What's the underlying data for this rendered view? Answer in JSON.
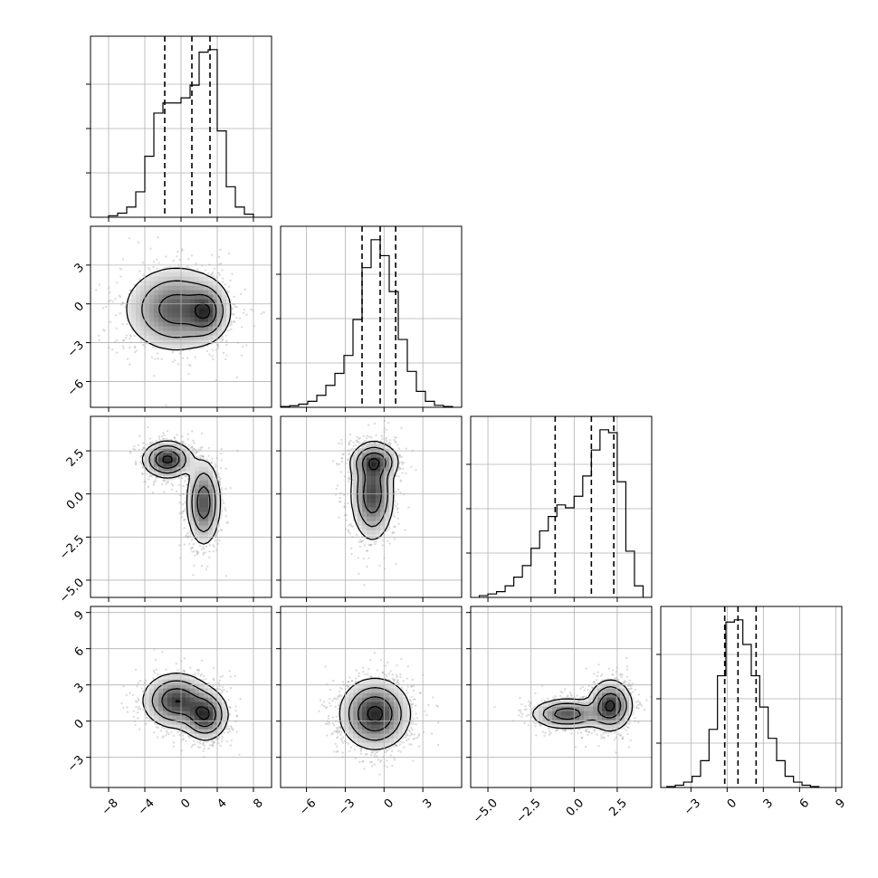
{
  "chart_data": {
    "type": "corner",
    "parameters": [
      {
        "range": [
          -10,
          10
        ],
        "ticks": [
          -8,
          -4,
          0,
          4,
          8
        ],
        "tick_labels": [
          "−8",
          "−4",
          "0",
          "4",
          "8"
        ],
        "hist_edges": [
          -8,
          -7,
          -6,
          -5,
          -4,
          -3,
          -2,
          -1,
          0,
          1,
          2,
          3,
          4,
          5,
          6,
          7,
          8
        ],
        "hist_counts": [
          3,
          8,
          20,
          50,
          120,
          205,
          225,
          225,
          235,
          260,
          325,
          330,
          170,
          60,
          20,
          6
        ],
        "quantiles": [
          -1.8,
          1.2,
          3.2
        ]
      },
      {
        "range": [
          -8,
          6
        ],
        "ticks": [
          -6,
          -3,
          0,
          3
        ],
        "tick_labels": [
          "−6",
          "−3",
          "0",
          "3"
        ],
        "hist_edges": [
          -8,
          -7.3,
          -6.6,
          -5.9,
          -5.2,
          -4.5,
          -3.8,
          -3.1,
          -2.4,
          -1.7,
          -1.0,
          -0.3,
          0.4,
          1.1,
          1.8,
          2.5,
          3.2,
          3.9,
          4.6,
          5.3
        ],
        "hist_counts": [
          2,
          4,
          8,
          15,
          30,
          55,
          85,
          130,
          220,
          350,
          420,
          380,
          290,
          170,
          90,
          40,
          15,
          5,
          2
        ],
        "quantiles": [
          -1.7,
          -0.3,
          0.9
        ]
      },
      {
        "range": [
          -6,
          4.5
        ],
        "ticks": [
          -5.0,
          -2.5,
          0.0,
          2.5
        ],
        "tick_labels": [
          "−5.0",
          "−2.5",
          "0.0",
          "2.5"
        ],
        "hist_edges": [
          -5.5,
          -5.0,
          -4.5,
          -4.0,
          -3.5,
          -3.0,
          -2.5,
          -2.0,
          -1.5,
          -1.0,
          -0.5,
          0.0,
          0.5,
          1.0,
          1.5,
          2.0,
          2.5,
          3.0,
          3.5,
          4.0
        ],
        "hist_counts": [
          3,
          6,
          10,
          20,
          35,
          55,
          85,
          115,
          140,
          160,
          155,
          175,
          210,
          255,
          290,
          285,
          200,
          80,
          20
        ],
        "quantiles": [
          -1.1,
          1.0,
          2.3
        ]
      },
      {
        "range": [
          -5.5,
          9.5
        ],
        "ticks": [
          -3,
          0,
          3,
          6,
          9
        ],
        "tick_labels": [
          "−3",
          "0",
          "3",
          "6",
          "9"
        ],
        "hist_edges": [
          -5,
          -4.3,
          -3.6,
          -2.9,
          -2.2,
          -1.5,
          -0.8,
          -0.1,
          0.6,
          1.3,
          2.0,
          2.7,
          3.4,
          4.1,
          4.8,
          5.5,
          6.2,
          6.9,
          7.6
        ],
        "hist_counts": [
          2,
          5,
          12,
          25,
          60,
          130,
          250,
          370,
          375,
          320,
          250,
          180,
          110,
          60,
          25,
          12,
          5,
          2
        ],
        "quantiles": [
          -0.2,
          0.9,
          2.4
        ]
      }
    ],
    "pairs": [
      {
        "x": 0,
        "y": 1,
        "modes": [
          {
            "mx": -0.5,
            "my": -0.4,
            "sx": 2.8,
            "sy": 1.6,
            "w": 0.55
          },
          {
            "mx": 2.8,
            "my": -0.6,
            "sx": 1.1,
            "sy": 1.0,
            "w": 0.45
          }
        ]
      },
      {
        "x": 0,
        "y": 2,
        "modes": [
          {
            "mx": -1.5,
            "my": 2.0,
            "sx": 1.3,
            "sy": 0.5,
            "w": 0.55
          },
          {
            "mx": 2.5,
            "my": -0.5,
            "sx": 0.9,
            "sy": 1.2,
            "w": 0.45
          }
        ]
      },
      {
        "x": 1,
        "y": 2,
        "modes": [
          {
            "mx": -0.7,
            "my": 1.9,
            "sx": 0.9,
            "sy": 0.5,
            "w": 0.45
          },
          {
            "mx": -0.9,
            "my": 0.0,
            "sx": 0.8,
            "sy": 1.3,
            "w": 0.55
          }
        ]
      },
      {
        "x": 0,
        "y": 3,
        "modes": [
          {
            "mx": -0.5,
            "my": 1.7,
            "sx": 1.8,
            "sy": 1.1,
            "w": 0.5
          },
          {
            "mx": 2.7,
            "my": 0.5,
            "sx": 1.2,
            "sy": 1.0,
            "w": 0.5
          }
        ]
      },
      {
        "x": 1,
        "y": 3,
        "modes": [
          {
            "mx": -0.7,
            "my": 0.6,
            "sx": 1.3,
            "sy": 1.4,
            "w": 1.0
          }
        ]
      },
      {
        "x": 2,
        "y": 3,
        "modes": [
          {
            "mx": -0.4,
            "my": 0.6,
            "sx": 1.0,
            "sy": 0.6,
            "w": 0.45
          },
          {
            "mx": 2.1,
            "my": 1.3,
            "sx": 0.6,
            "sy": 1.0,
            "w": 0.55
          }
        ]
      }
    ],
    "contour_levels": [
      0.11,
      0.3,
      0.6,
      0.9
    ],
    "grid": true,
    "xlabel": "",
    "ylabel": "",
    "title": ""
  }
}
